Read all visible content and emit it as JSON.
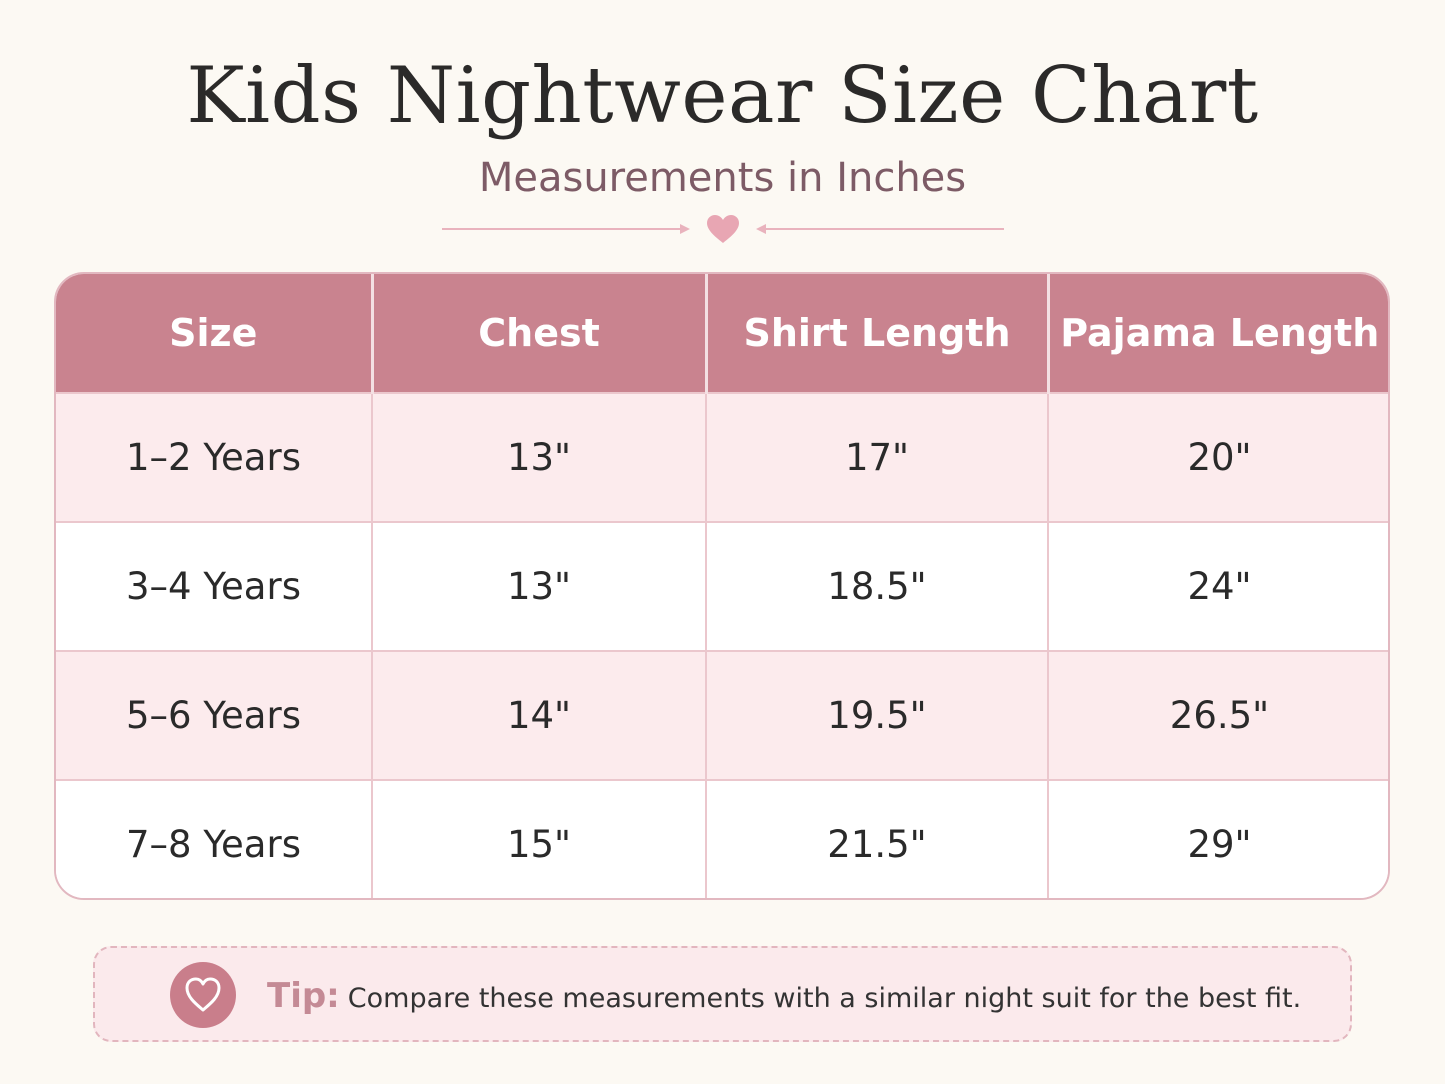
{
  "title": "Kids Nightwear Size Chart",
  "subtitle": "Measurements in Inches",
  "colors": {
    "background": "#fcf9f3",
    "header": "#c9838f",
    "row_tint": "#fcebed",
    "accent": "#e8a6b3"
  },
  "icons": {
    "divider": "heart-icon",
    "tip": "heart-outline-icon"
  },
  "table": {
    "headers": [
      "Size",
      "Chest",
      "Shirt Length",
      "Pajama Length"
    ],
    "rows": [
      [
        "1–2 Years",
        "13\"",
        "17\"",
        "20\""
      ],
      [
        "3–4 Years",
        "13\"",
        "18.5\"",
        "24\""
      ],
      [
        "5–6 Years",
        "14\"",
        "19.5\"",
        "26.5\""
      ],
      [
        "7–8 Years",
        "15\"",
        "21.5\"",
        "29\""
      ]
    ]
  },
  "tip": {
    "label": "Tip:",
    "text": "Compare these measurements with a similar night suit for the best fit."
  }
}
